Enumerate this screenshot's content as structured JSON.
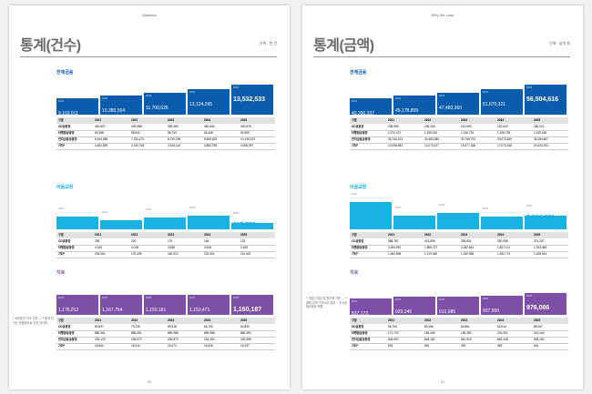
{
  "colors": {
    "dark_blue": "#0b5cad",
    "cyan": "#1ab0e0",
    "purple": "#7e4fa6",
    "header_gray": "#dedede"
  },
  "left": {
    "running_head": "Statistics",
    "title": "통계(건수)",
    "unit": "단위 : 천 건",
    "page_number": "50",
    "side_note": "* 아래표의 귀속 기준 ... ** 합계 차이는 반올림으로 인한 것이며 ...",
    "sections": [
      {
        "label": "전체금융",
        "color": "dark_blue",
        "years": [
          "2021",
          "2022",
          "2023",
          "2024",
          "2025"
        ],
        "values": [
          "9,103,011",
          "10,380,554",
          "11,700,626",
          "13,124,295",
          "13,532,533"
        ],
        "table_header": [
          "구분",
          "2021",
          "2022",
          "2023",
          "2024",
          "2025"
        ],
        "rows": [
          [
            "CD공동망",
            "440,837",
            "409,588",
            "395,483",
            "360,504",
            "340,878"
          ],
          [
            "타행환공동망",
            "63,358",
            "58,832",
            "56,733",
            "54,408",
            "52,969"
          ],
          [
            "전자금융공동망",
            "6,944,968",
            "7,781,170",
            "8,732,296",
            "8,845,823",
            "10,130,223"
          ],
          [
            "기타*",
            "1,652,839",
            "2,130,764",
            "2,516,114",
            "3,863,759",
            "3,008,397"
          ]
        ]
      },
      {
        "label": "어음교환",
        "color": "cyan",
        "years": [
          "2021",
          "2022",
          "2023",
          "2024",
          "2025"
        ],
        "values": [
          "234,583",
          "178,674",
          "193,534",
          "207,296",
          "117,750"
        ],
        "table_header": [
          "구분",
          "2021",
          "2022",
          "2023",
          "2024",
          "2025"
        ],
        "rows": [
          [
            "CD공동망",
            "293",
            "220",
            "176",
            "164",
            "133"
          ],
          [
            "타행환공동망",
            "4,316",
            "4,018",
            "3,838",
            "3,628",
            "3,183"
          ],
          [
            "기타*",
            "205,064",
            "175,495",
            "160,510",
            "203,504",
            "114,402"
          ]
        ]
      },
      {
        "label": "지로",
        "color": "purple",
        "years": [
          "2021",
          "2022",
          "2023",
          "2024",
          "2025"
        ],
        "values": [
          "1,176,912",
          "1,167,754",
          "1,150,181",
          "1,150,471",
          "1,160,187"
        ],
        "table_header": [
          "구분",
          "2021",
          "2022",
          "2023",
          "2024",
          "2025"
        ],
        "rows": [
          [
            "CD공동망",
            "69,697",
            "79,239",
            "69,928",
            "64,790",
            "62,890"
          ],
          [
            "타행환공동망",
            "880,361",
            "885,451",
            "869,988",
            "869,988",
            "880,490"
          ],
          [
            "전자금융공동망",
            "209,129",
            "206,670",
            "206,873",
            "216,153",
            "220,698"
          ],
          [
            "기타*",
            "15,064",
            "15,044",
            "15,472",
            "15,626",
            "15,297"
          ]
        ]
      }
    ]
  },
  "right": {
    "running_head": "Why We Lead",
    "title": "통계(금액)",
    "unit": "단위 : 십억 원",
    "page_number": "51",
    "side_note": "* 기업간 매입 및 원거래 기준 ... ** 결제 금액 기준으로 집계 ... 전자금융공동망 포함 ...",
    "sections": [
      {
        "label": "전체금융",
        "color": "dark_blue",
        "years": [
          "2021",
          "2022",
          "2023",
          "2024",
          "2025"
        ],
        "values": [
          "40,390,337",
          "45,178,859",
          "47,483,360",
          "51,670,321",
          "56,504,616"
        ],
        "table_header": [
          "구분",
          "2021",
          "2022",
          "2023",
          "2024",
          "2025"
        ],
        "rows": [
          [
            "CD공동망",
            "238,966",
            "235,332",
            "213,509",
            "192,625",
            "180,011"
          ],
          [
            "타행환공동망",
            "1,270,472",
            "1,206,415",
            "1,136,720",
            "1,326,739",
            "1,139,160"
          ],
          [
            "전자금융공동망",
            "28,740,313",
            "30,463,085",
            "30,758,703",
            "33,073,639",
            "35,184,667"
          ],
          [
            "기타*",
            "10,098,983",
            "13,273,127",
            "15,377,348",
            "17,073,318",
            "20,004,753"
          ]
        ]
      },
      {
        "label": "어음교환",
        "color": "cyan",
        "years": [
          "2021",
          "2022",
          "2023",
          "2024",
          "2025"
        ],
        "values": [
          "5,036,476",
          "3,489,763",
          "3,860,498",
          "3,390,833",
          "3,504,861"
        ],
        "table_header": [
          "구분",
          "2021",
          "2022",
          "2023",
          "2024",
          "2025"
        ],
        "rows": [
          [
            "CD공동망",
            "388,787",
            "413,836",
            "328,831",
            "330,058",
            "374,287"
          ],
          [
            "타행환공동망",
            "3,264,991",
            "1,856,377",
            "2,082,841",
            "1,827,121",
            "1,763,483"
          ],
          [
            "기타*",
            "1,382,698",
            "1,219,460",
            "1,259,356",
            "1,252,774",
            "1,028,091"
          ]
        ]
      },
      {
        "label": "지로",
        "color": "purple",
        "years": [
          "2021",
          "2022",
          "2023",
          "2024",
          "2025"
        ],
        "values": [
          "837,173",
          "929,346",
          "912,985",
          "937,950",
          "976,086"
        ],
        "table_header": [
          "구분",
          "2021",
          "2022",
          "2023",
          "2024",
          "2025"
        ],
        "rows": [
          [
            "CD공동망",
            "56,753",
            "80,166",
            "64,881",
            "63,014",
            "86,067"
          ],
          [
            "타행환공동망",
            "171,742",
            "184,466",
            "185,380",
            "203,301",
            "214,444"
          ],
          [
            "전자금융공동망",
            "608,092",
            "664,182",
            "661,915",
            "682,448",
            "695,150"
          ],
          [
            "기타*",
            "634",
            "552",
            "453",
            "483",
            "444"
          ]
        ]
      }
    ]
  }
}
